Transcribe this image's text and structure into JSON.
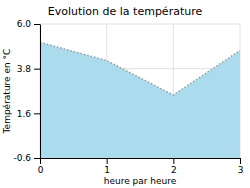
{
  "chart_data": {
    "type": "area",
    "title": "Evolution de la température",
    "x_label": "heure par heure",
    "y_label": "Température en °C",
    "x": [
      0,
      1,
      2,
      3
    ],
    "values": [
      5.1,
      4.2,
      2.5,
      4.7
    ],
    "color": "#aadcee",
    "line_style": "dotted",
    "xlim": [
      0,
      3
    ],
    "xticks": [
      0,
      1,
      2,
      3
    ],
    "ylim": [
      -0.6,
      6.0
    ],
    "yticks": [
      -0.6,
      1.6,
      3.8,
      {
        "value": 6.0,
        "label": "6.0"
      }
    ],
    "grid": true
  }
}
